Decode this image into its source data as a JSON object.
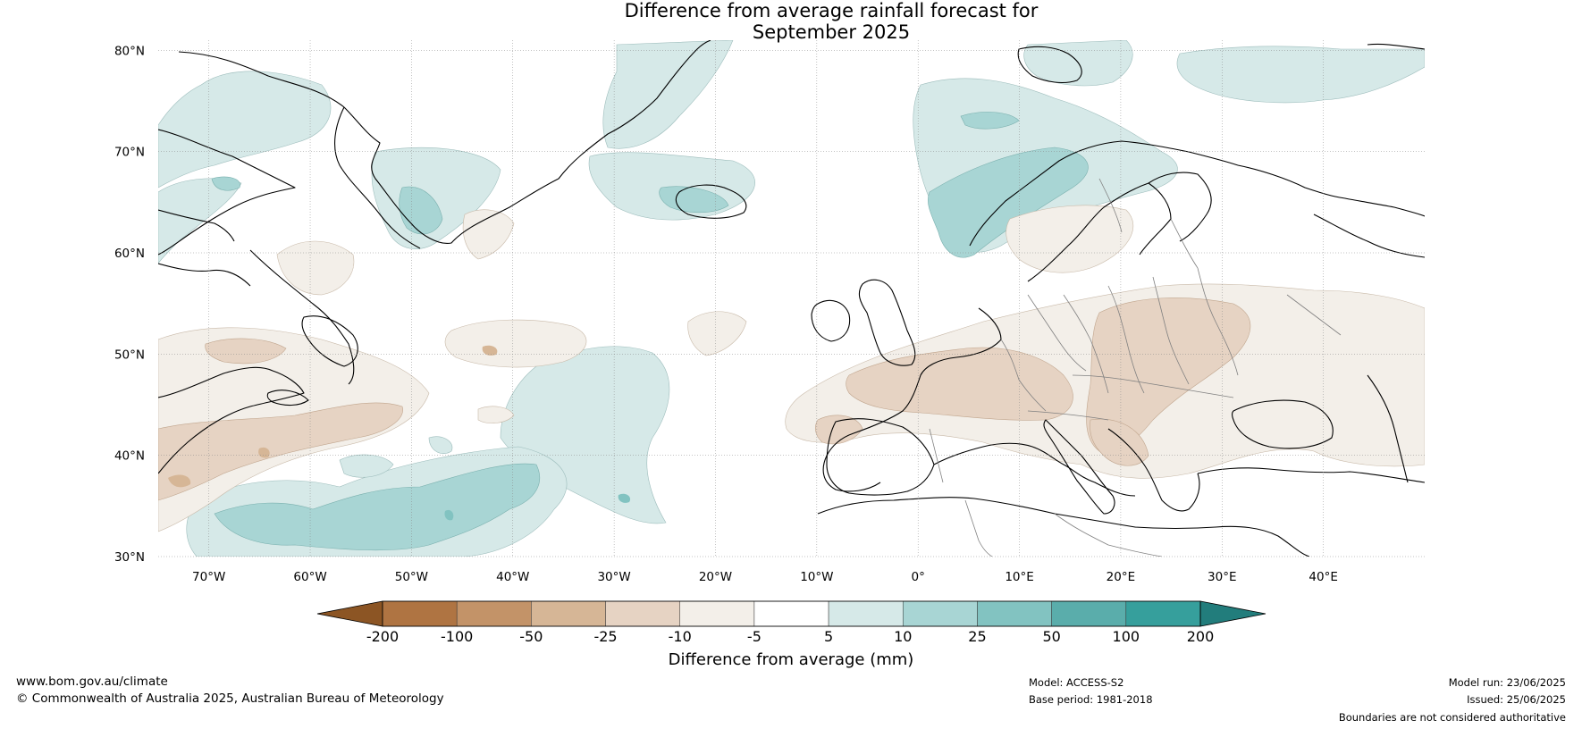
{
  "title": {
    "line1": "Difference from average rainfall forecast for",
    "line2": "September 2025"
  },
  "map": {
    "lat_labels": [
      "80°N",
      "70°N",
      "60°N",
      "50°N",
      "40°N",
      "30°N"
    ],
    "lon_labels": [
      "70°W",
      "60°W",
      "50°W",
      "40°W",
      "30°W",
      "20°W",
      "10°W",
      "0°",
      "10°E",
      "20°E",
      "30°E",
      "40°E"
    ],
    "lat_values": [
      80,
      70,
      60,
      50,
      40,
      30
    ],
    "lon_values": [
      -70,
      -60,
      -50,
      -40,
      -30,
      -20,
      -10,
      0,
      10,
      20,
      30,
      40
    ],
    "lon_range": [
      -75,
      50
    ],
    "lat_range": [
      30,
      81
    ],
    "ocean_color": "#ffffff",
    "coastline_color": "#000000",
    "border_color": "#808080"
  },
  "colorbar": {
    "label": "Difference from average (mm)",
    "ticks": [
      "-200",
      "-100",
      "-50",
      "-25",
      "-10",
      "-5",
      "5",
      "10",
      "25",
      "50",
      "100",
      "200"
    ],
    "colors": [
      "#8c5524",
      "#af7442",
      "#c39368",
      "#d6b696",
      "#e6d3c3",
      "#f3efe9",
      "#ffffff",
      "#d6e9e8",
      "#a8d5d4",
      "#82c3c1",
      "#5aadab",
      "#369f9c",
      "#227d7c"
    ]
  },
  "footer": {
    "website": "www.bom.gov.au/climate",
    "copyright": "© Commonwealth of Australia 2025, Australian Bureau of Meteorology",
    "model": "Model: ACCESS-S2",
    "base_period": "Base period: 1981-2018",
    "model_run": "Model run: 23/06/2025",
    "issued": "Issued: 25/06/2025",
    "disclaimer": "Boundaries are not considered authoritative"
  }
}
